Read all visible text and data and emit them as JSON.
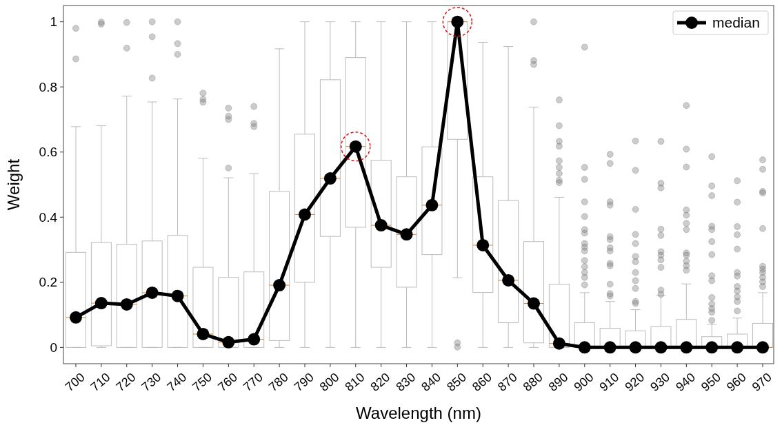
{
  "chart_data": {
    "type": "box",
    "xlabel": "Wavelength (nm)",
    "ylabel": "Weight",
    "categories": [
      "700",
      "710",
      "720",
      "730",
      "740",
      "750",
      "760",
      "770",
      "780",
      "790",
      "800",
      "810",
      "820",
      "830",
      "840",
      "850",
      "860",
      "870",
      "880",
      "890",
      "900",
      "910",
      "920",
      "930",
      "940",
      "950",
      "960",
      "970"
    ],
    "ylim": [
      -0.05,
      1.05
    ],
    "yticks": [
      0,
      0.2,
      0.4,
      0.6,
      0.8,
      1
    ],
    "grid": false,
    "legend": "top right",
    "series": [
      {
        "color": "#bbbbbb",
        "boxes": [
          {
            "low": 0,
            "q1": 0,
            "median": 0.092,
            "q3": 0.292,
            "high": 0.678,
            "outliers": [
              0.98,
              0.886
            ]
          },
          {
            "low": 0,
            "q1": 0.005,
            "median": 0.136,
            "q3": 0.322,
            "high": 0.681,
            "outliers": [
              0.999,
              0.993
            ]
          },
          {
            "low": 0,
            "q1": 0,
            "median": 0.132,
            "q3": 0.317,
            "high": 0.772,
            "outliers": [
              0.998,
              0.919
            ]
          },
          {
            "low": 0,
            "q1": 0,
            "median": 0.168,
            "q3": 0.327,
            "high": 0.754,
            "outliers": [
              1.0,
              0.954,
              0.827
            ]
          },
          {
            "low": 0,
            "q1": 0,
            "median": 0.158,
            "q3": 0.344,
            "high": 0.763,
            "outliers": [
              1.0,
              0.933,
              0.9
            ]
          },
          {
            "low": 0,
            "q1": 0,
            "median": 0.041,
            "q3": 0.246,
            "high": 0.581,
            "outliers": [
              0.781,
              0.762,
              0.753
            ]
          },
          {
            "low": 0,
            "q1": 0,
            "median": 0.016,
            "q3": 0.215,
            "high": 0.521,
            "outliers": [
              0.735,
              0.71,
              0.7,
              0.551
            ]
          },
          {
            "low": 0,
            "q1": 0,
            "median": 0.025,
            "q3": 0.232,
            "high": 0.534,
            "outliers": [
              0.74,
              0.688,
              0.678
            ]
          },
          {
            "low": 0,
            "q1": 0.021,
            "median": 0.191,
            "q3": 0.479,
            "high": 0.917
          },
          {
            "low": 0,
            "q1": 0.2,
            "median": 0.408,
            "q3": 0.655,
            "high": 1.0
          },
          {
            "low": 0,
            "q1": 0.341,
            "median": 0.519,
            "q3": 0.822,
            "high": 1.0
          },
          {
            "low": 0,
            "q1": 0.369,
            "median": 0.617,
            "q3": 0.89,
            "high": 1.0
          },
          {
            "low": 0,
            "q1": 0.246,
            "median": 0.375,
            "q3": 0.575,
            "high": 1.0
          },
          {
            "low": 0,
            "q1": 0.185,
            "median": 0.347,
            "q3": 0.524,
            "high": 1.0
          },
          {
            "low": 0,
            "q1": 0.285,
            "median": 0.437,
            "q3": 0.616,
            "high": 1.0
          },
          {
            "low": 0.214,
            "q1": 0.639,
            "median": 1.0,
            "q3": 1.0,
            "high": 1.0,
            "outliers": [
              0.014,
              0.001
            ]
          },
          {
            "low": 0,
            "q1": 0.169,
            "median": 0.314,
            "q3": 0.524,
            "high": 0.937
          },
          {
            "low": 0,
            "q1": 0.076,
            "median": 0.206,
            "q3": 0.451,
            "high": 0.924
          },
          {
            "low": 0,
            "q1": 0.014,
            "median": 0.135,
            "q3": 0.325,
            "high": 0.738,
            "outliers": [
              1.0,
              0.881,
              0.869
            ]
          },
          {
            "low": 0,
            "q1": 0,
            "median": 0.012,
            "q3": 0.194,
            "high": 0.461,
            "outliers": [
              0.76,
              0.681,
              0.633,
              0.618,
              0.573,
              0.553,
              0.534,
              0.513,
              0.506
            ]
          },
          {
            "low": 0,
            "q1": 0,
            "median": 0,
            "q3": 0.076,
            "high": 0.168,
            "outliers": [
              0.922,
              0.553,
              0.516,
              0.447,
              0.402,
              0.362,
              0.351,
              0.319,
              0.308,
              0.296,
              0.267,
              0.248,
              0.23,
              0.215,
              0.192
            ]
          },
          {
            "low": 0,
            "q1": 0,
            "median": 0,
            "q3": 0.059,
            "high": 0.141,
            "outliers": [
              0.593,
              0.565,
              0.447,
              0.437,
              0.34,
              0.331,
              0.306,
              0.296,
              0.258,
              0.251,
              0.194,
              0.165,
              0.158
            ]
          },
          {
            "low": 0,
            "q1": 0,
            "median": 0,
            "q3": 0.051,
            "high": 0.116,
            "outliers": [
              0.634,
              0.544,
              0.424,
              0.347,
              0.319,
              0.279,
              0.263,
              0.23,
              0.205,
              0.181,
              0.141,
              0.135
            ]
          },
          {
            "low": 0,
            "q1": 0,
            "median": 0,
            "q3": 0.064,
            "high": 0.159,
            "outliers": [
              0.633,
              0.504,
              0.49,
              0.363,
              0.344,
              0.294,
              0.283,
              0.269,
              0.246,
              0.176,
              0.163
            ]
          },
          {
            "low": 0,
            "q1": 0,
            "median": 0,
            "q3": 0.086,
            "high": 0.195,
            "outliers": [
              0.743,
              0.609,
              0.554,
              0.422,
              0.406,
              0.381,
              0.362,
              0.29,
              0.283,
              0.265,
              0.251,
              0.237
            ]
          },
          {
            "low": 0,
            "q1": 0,
            "median": 0,
            "q3": 0.033,
            "high": 0.071,
            "outliers": [
              0.586,
              0.496,
              0.466,
              0.372,
              0.362,
              0.325,
              0.285,
              0.22,
              0.205,
              0.153,
              0.133,
              0.119,
              0.108,
              0.083
            ]
          },
          {
            "low": 0,
            "q1": 0,
            "median": 0,
            "q3": 0.041,
            "high": 0.09,
            "outliers": [
              0.512,
              0.446,
              0.371,
              0.346,
              0.302,
              0.23,
              0.219,
              0.187,
              0.173,
              0.155,
              0.141,
              0.112
            ]
          },
          {
            "low": 0,
            "q1": 0,
            "median": 0,
            "q3": 0.074,
            "high": 0.168,
            "outliers": [
              0.576,
              0.547,
              0.479,
              0.474,
              0.365,
              0.249,
              0.24,
              0.23,
              0.215,
              0.201,
              0.187
            ]
          }
        ]
      },
      {
        "type": "line",
        "name": "median",
        "color": "#000000",
        "marker": "circle",
        "line_style": "solid",
        "values": [
          0.092,
          0.136,
          0.132,
          0.168,
          0.158,
          0.041,
          0.016,
          0.025,
          0.191,
          0.408,
          0.519,
          0.617,
          0.375,
          0.347,
          0.437,
          1.0,
          0.314,
          0.206,
          0.135,
          0.012,
          0,
          0,
          0,
          0,
          0,
          0,
          0,
          0
        ]
      }
    ]
  }
}
